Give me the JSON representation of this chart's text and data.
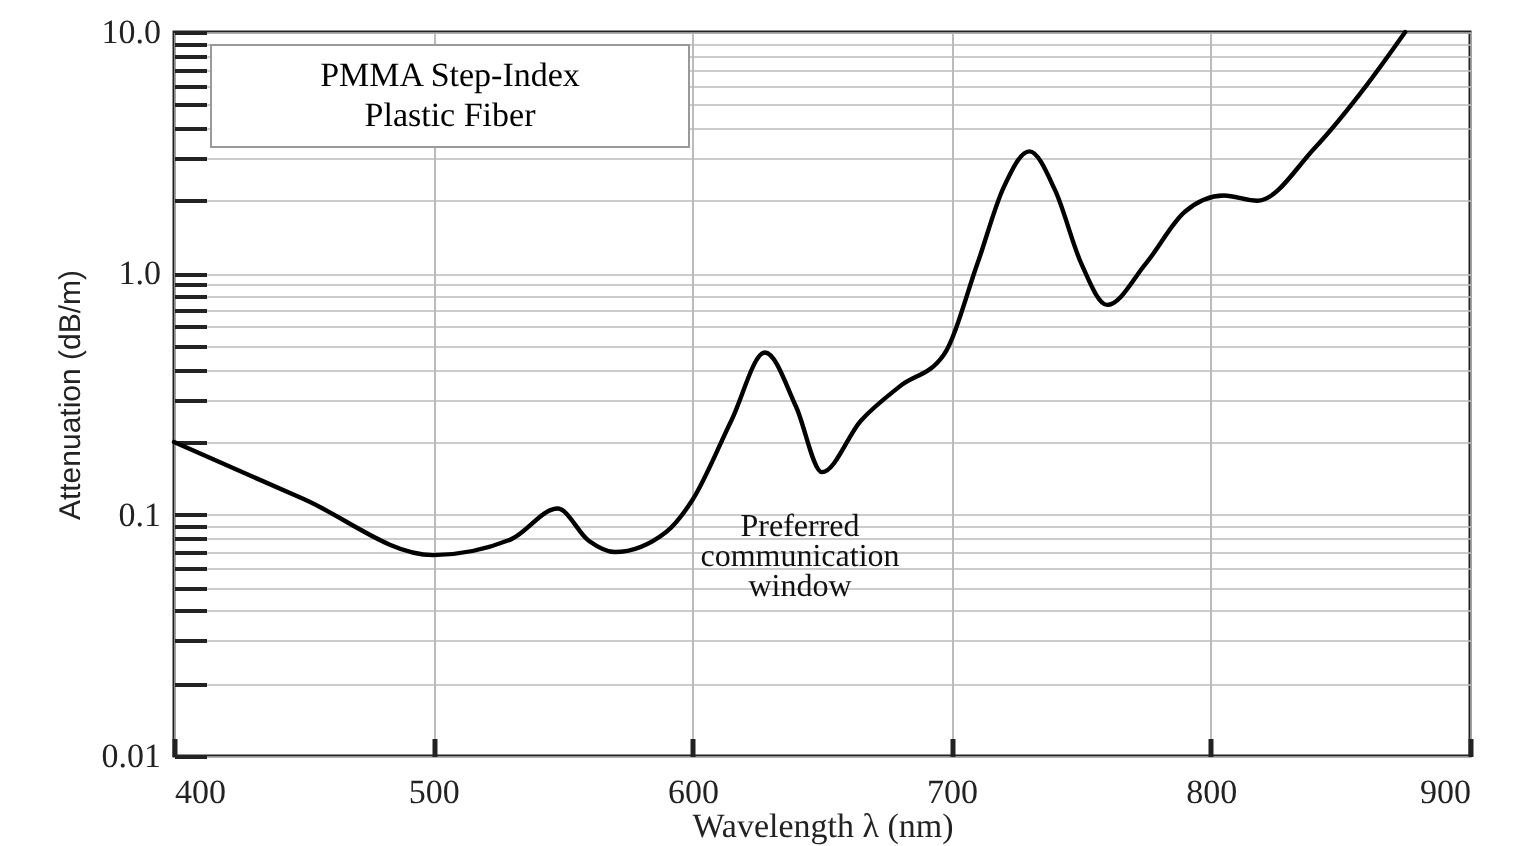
{
  "chart_data": {
    "type": "line",
    "xlabel": "Wavelength λ (nm)",
    "ylabel": "Attenuation (dB/m)",
    "annotations": [
      "PMMA Step-Index\nPlastic Fiber",
      "Preferred\ncommunication\nwindow"
    ],
    "x": [
      400,
      450,
      500,
      530,
      548,
      560,
      570,
      590,
      600,
      615,
      628,
      640,
      650,
      665,
      680,
      697,
      710,
      720,
      730,
      740,
      750,
      760,
      775,
      790,
      805,
      818,
      840,
      860,
      875
    ],
    "series": [
      {
        "color": "#000000",
        "values": [
          0.2,
          0.116,
          0.068,
          0.079,
          0.106,
          0.078,
          0.07,
          0.085,
          0.115,
          0.245,
          0.47,
          0.28,
          0.15,
          0.245,
          0.34,
          0.46,
          1.1,
          2.26,
          3.2,
          2.2,
          1.1,
          0.74,
          1.1,
          1.8,
          2.1,
          2.0,
          3.3,
          6.0,
          10
        ]
      }
    ],
    "xlim": [
      400,
      900
    ],
    "xticks": [
      400,
      500,
      600,
      700,
      800,
      900
    ],
    "ylim": [
      0.01,
      10
    ],
    "yticks": [
      {
        "value": 0.01,
        "label": "0.01"
      },
      {
        "value": 0.02,
        "label": null
      },
      {
        "value": 0.03,
        "label": null
      },
      {
        "value": 0.04,
        "label": null
      },
      {
        "value": 0.05,
        "label": null
      },
      {
        "value": 0.06,
        "label": null
      },
      {
        "value": 0.07,
        "label": null
      },
      {
        "value": 0.08,
        "label": null
      },
      {
        "value": 0.09,
        "label": null
      },
      {
        "value": 0.1,
        "label": "0.1"
      },
      {
        "value": 0.2,
        "label": null
      },
      {
        "value": 0.3,
        "label": null
      },
      {
        "value": 0.4,
        "label": null
      },
      {
        "value": 0.5,
        "label": null
      },
      {
        "value": 0.6,
        "label": null
      },
      {
        "value": 0.7,
        "label": null
      },
      {
        "value": 0.8,
        "label": null
      },
      {
        "value": 0.9,
        "label": null
      },
      {
        "value": 1,
        "label": "1.0"
      },
      {
        "value": 2,
        "label": null
      },
      {
        "value": 3,
        "label": null
      },
      {
        "value": 4,
        "label": null
      },
      {
        "value": 5,
        "label": null
      },
      {
        "value": 6,
        "label": null
      },
      {
        "value": 7,
        "label": null
      },
      {
        "value": 8,
        "label": null
      },
      {
        "value": 9,
        "label": null
      },
      {
        "value": 10,
        "label": "10.0"
      }
    ],
    "log": "y",
    "grid": true,
    "line_style": "solid"
  }
}
